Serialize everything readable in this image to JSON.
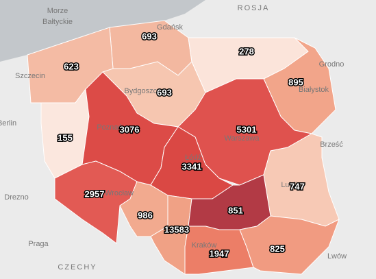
{
  "regions": [
    {
      "value": "693",
      "color": "#f3b8a0"
    },
    {
      "value": "623",
      "color": "#f4bba4"
    },
    {
      "value": "278",
      "color": "#fbe4da"
    },
    {
      "value": "895",
      "color": "#f2a58a"
    },
    {
      "value": "693",
      "color": "#f6c6b0"
    },
    {
      "value": "155",
      "color": "#fbe7de"
    },
    {
      "value": "3076",
      "color": "#dc4b47"
    },
    {
      "value": "5301",
      "color": "#df524e"
    },
    {
      "value": "3341",
      "color": "#da4844"
    },
    {
      "value": "2957",
      "color": "#e25a54"
    },
    {
      "value": "747",
      "color": "#f7c9b5"
    },
    {
      "value": "986",
      "color": "#f2aa8f"
    },
    {
      "value": "851",
      "color": "#f0a185"
    },
    {
      "value": "13583",
      "color": "#b23a45"
    },
    {
      "value": "1947",
      "color": "#ec7e67"
    },
    {
      "value": "825",
      "color": "#f19b81"
    }
  ],
  "place_labels": [
    "Morze",
    "Bałtyckie",
    "ROSJA",
    "Gdańsk",
    "Szczecin",
    "Bydgoszcz",
    "Berlin",
    "Poznań",
    "Warszawa",
    "Grodno",
    "Białystok",
    "Brześć",
    "Łódź",
    "Lublin",
    "Wrocław",
    "Drezno",
    "Praga",
    "Kraków",
    "Lwów",
    "CZECHY"
  ]
}
